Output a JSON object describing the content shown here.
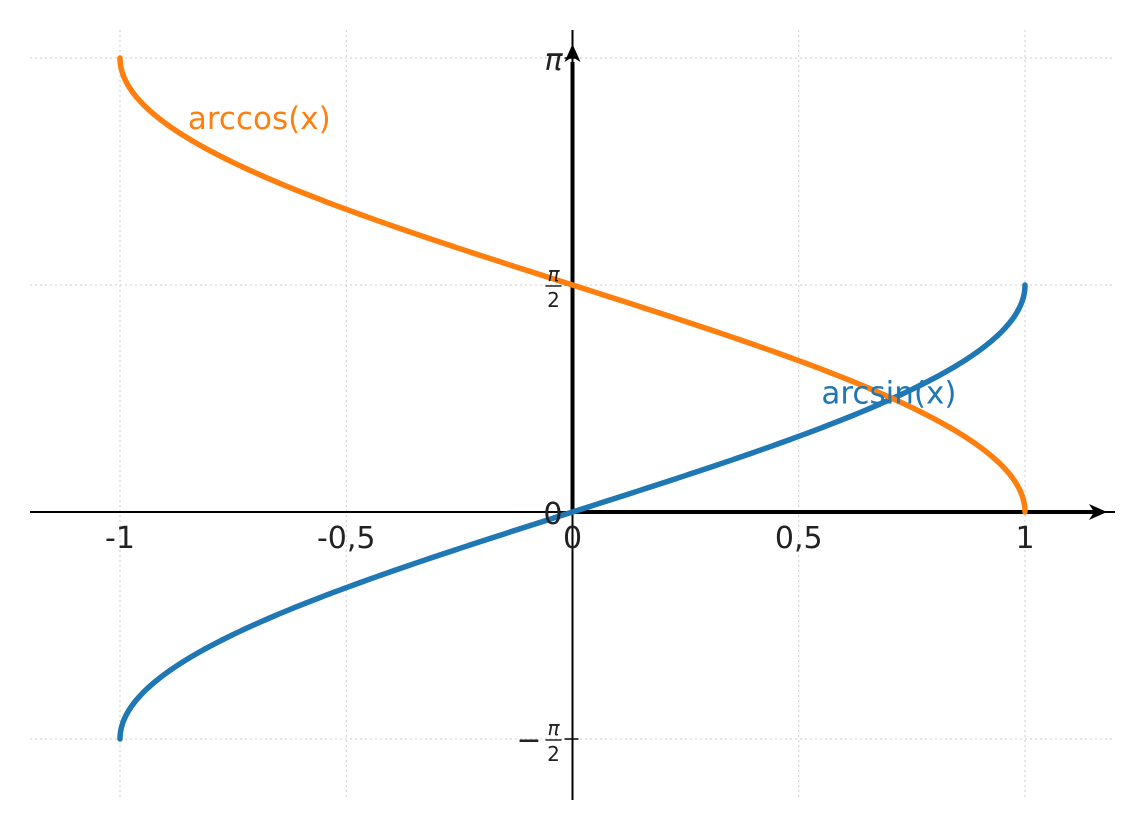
{
  "chart_data": {
    "type": "line",
    "title": "",
    "xlabel": "",
    "ylabel": "",
    "xlim": [
      -1.2,
      1.2
    ],
    "ylim": [
      -1.85,
      3.35
    ],
    "grid": true,
    "x_ticks": [
      {
        "value": -1,
        "label": "-1"
      },
      {
        "value": -0.5,
        "label": "-0,5"
      },
      {
        "value": 0,
        "label": "0"
      },
      {
        "value": 0.5,
        "label": "0,5"
      },
      {
        "value": 1,
        "label": "1"
      }
    ],
    "y_ticks": [
      {
        "value": 3.14159,
        "label": "π",
        "kind": "symbol"
      },
      {
        "value": 1.5708,
        "label": "",
        "kind": "fraction",
        "numerator": "π",
        "denominator": "2",
        "sign": ""
      },
      {
        "value": 0,
        "label": "0",
        "kind": "plain"
      },
      {
        "value": -1.5708,
        "label": "",
        "kind": "fraction",
        "numerator": "π",
        "denominator": "2",
        "sign": "−"
      }
    ],
    "series": [
      {
        "name": "arcsin(x)",
        "function": "arcsin",
        "color": "#1f77b4",
        "domain": [
          -1,
          1
        ],
        "label": "arcsin(x)",
        "label_anchor": [
          0.55,
          0.75
        ]
      },
      {
        "name": "arccos(x)",
        "function": "arccos",
        "color": "#ff7f0e",
        "domain": [
          -1,
          1
        ],
        "label": "arccos(x)",
        "label_anchor": [
          -0.85,
          2.65
        ]
      }
    ]
  }
}
